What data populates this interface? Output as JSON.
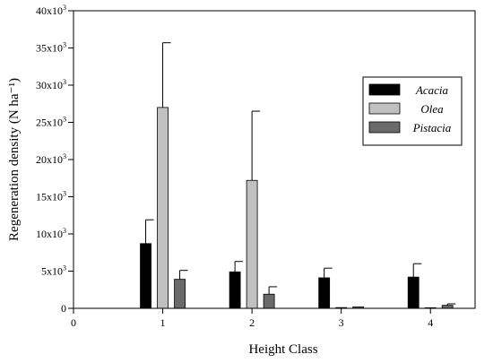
{
  "chart_data": {
    "type": "bar",
    "xlabel": "Height Class",
    "ylabel": "Regeneration density (N ha⁻¹)",
    "xlim": [
      0,
      4.5
    ],
    "ylim": [
      0,
      40000
    ],
    "x_ticks": [
      "0",
      "1",
      "2",
      "3",
      "4"
    ],
    "y_ticks": [
      {
        "value": 0,
        "label": "0"
      },
      {
        "value": 5000,
        "label": "5x10³"
      },
      {
        "value": 10000,
        "label": "10x10³"
      },
      {
        "value": 15000,
        "label": "15x10³"
      },
      {
        "value": 20000,
        "label": "20x10³"
      },
      {
        "value": 25000,
        "label": "25x10³"
      },
      {
        "value": 30000,
        "label": "30x10³"
      },
      {
        "value": 35000,
        "label": "35x10³"
      },
      {
        "value": 40000,
        "label": "40x10³"
      }
    ],
    "categories": [
      1,
      2,
      3,
      4
    ],
    "grid": false,
    "legend_position": "top-right",
    "series": [
      {
        "name": "Acacia",
        "color": "#000000",
        "values": [
          8700,
          4900,
          4100,
          4200
        ],
        "errors": [
          3200,
          1400,
          1300,
          1800
        ]
      },
      {
        "name": "Olea",
        "color": "#c0c0c0",
        "values": [
          27000,
          17200,
          100,
          80
        ],
        "errors": [
          8700,
          9300,
          0,
          0
        ]
      },
      {
        "name": "Pistacia",
        "color": "#6a6a6a",
        "values": [
          3900,
          1900,
          200,
          400
        ],
        "errors": [
          1200,
          1000,
          0,
          200
        ]
      }
    ]
  }
}
